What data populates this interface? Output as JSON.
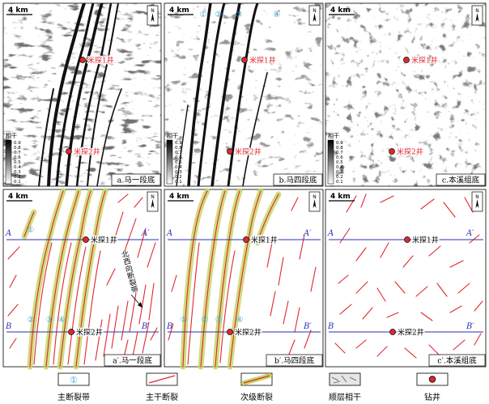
{
  "scale_label": "4 km",
  "north": "N",
  "top_row": [
    {
      "caption": "a.马一段底",
      "well1": "米探1井",
      "well2": "米探2井",
      "colorbar_title": "相干",
      "colorbar_ticks": [
        "0.9",
        "0.8",
        "0.7",
        "0.6",
        "0.5",
        "0.4",
        "0.3",
        "0.2",
        "0.1"
      ],
      "zone_ids": []
    },
    {
      "caption": "b.马四段底",
      "well1": "米探1井",
      "well2": "米探2井",
      "colorbar_title": "相干",
      "colorbar_ticks": [
        "0.9",
        "0.8",
        "0.7",
        "0.6",
        "0.5",
        "0.4",
        "0.3",
        "0.2",
        "0.1"
      ],
      "zone_ids": [
        "①",
        "②",
        "③",
        "④"
      ]
    },
    {
      "caption": "c.本溪组底",
      "well1": "米探1井",
      "well2": "米探2井",
      "colorbar_title": "相干",
      "colorbar_ticks": [
        "0.9",
        "0.8",
        "0.7",
        "0.6",
        "0.5",
        "0.4",
        "0.3",
        "0.2",
        "0.1"
      ],
      "zone_ids": []
    }
  ],
  "bottom_row": [
    {
      "caption": "a′.马一段底",
      "well1": "米探1井",
      "well2": "米探2井",
      "line_A": "A",
      "line_A2": "A′",
      "line_B": "B",
      "line_B2": "B′",
      "zone_ids": [
        "①",
        "②",
        "③",
        "④"
      ],
      "annotation": "北西向断裂带"
    },
    {
      "caption": "b′.马四段底",
      "well1": "米探1井",
      "well2": "米探2井",
      "line_A": "A",
      "line_A2": "A′",
      "line_B": "B",
      "line_B2": "B′",
      "zone_ids": [
        "①",
        "②",
        "③",
        "④"
      ],
      "annotation": ""
    },
    {
      "caption": "c′.本溪组底",
      "well1": "米探1井",
      "well2": "米探2井",
      "line_A": "A",
      "line_A2": "A′",
      "line_B": "B",
      "line_B2": "B′",
      "zone_ids": [],
      "annotation": ""
    }
  ],
  "legend": [
    {
      "symbol": "①",
      "label": "主断裂带"
    },
    {
      "symbol": "main-fault",
      "label": "主干断裂"
    },
    {
      "symbol": "secondary-fault",
      "label": "次级断裂"
    },
    {
      "symbol": "coherence",
      "label": "顺层相干"
    },
    {
      "symbol": "well",
      "label": "钻井"
    }
  ],
  "colors": {
    "fault": "#e0282e",
    "zone": "#c8d66a",
    "section_line": "#2b2fb5",
    "well": "#e0282e",
    "zone_id": "#3aa7d6"
  }
}
